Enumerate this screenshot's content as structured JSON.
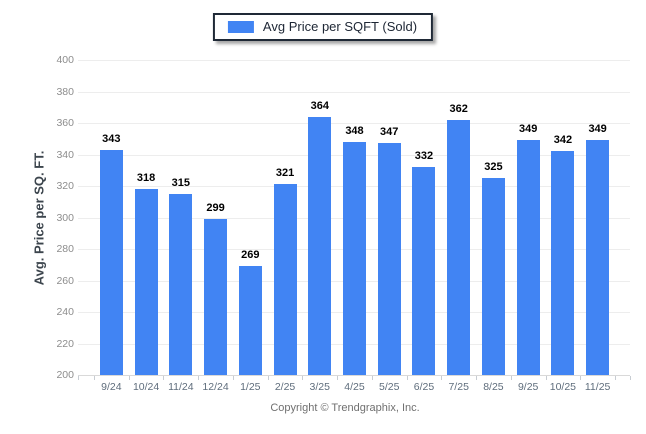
{
  "legend": {
    "label": "Avg Price per SQFT (Sold)"
  },
  "y_axis": {
    "title": "Avg. Price per SQ. FT.",
    "ticks": [
      400,
      380,
      360,
      340,
      320,
      300,
      280,
      260,
      240,
      220,
      200
    ]
  },
  "footer": {
    "copyright": "Copyright © Trendgraphix, Inc."
  },
  "colors": {
    "bar": "#4184f3",
    "legend_border": "#1f2936",
    "gridline": "#ededed",
    "axis_line": "#d9d9d9"
  },
  "chart_data": {
    "type": "bar",
    "title": "",
    "series_name": "Avg Price per SQFT (Sold)",
    "categories": [
      "9/24",
      "10/24",
      "11/24",
      "12/24",
      "1/25",
      "2/25",
      "3/25",
      "4/25",
      "5/25",
      "6/25",
      "7/25",
      "8/25",
      "9/25",
      "10/25",
      "11/25"
    ],
    "values": [
      343,
      318,
      315,
      299,
      269,
      321,
      364,
      348,
      347,
      332,
      362,
      325,
      349,
      342,
      349
    ],
    "xlabel": "",
    "ylabel": "Avg. Price per SQ. FT.",
    "ylim": [
      200,
      400
    ],
    "y_tick_step": 20,
    "bar_color": "#4184f3",
    "grid": "horizontal",
    "legend_position": "top-center",
    "data_labels": true
  }
}
